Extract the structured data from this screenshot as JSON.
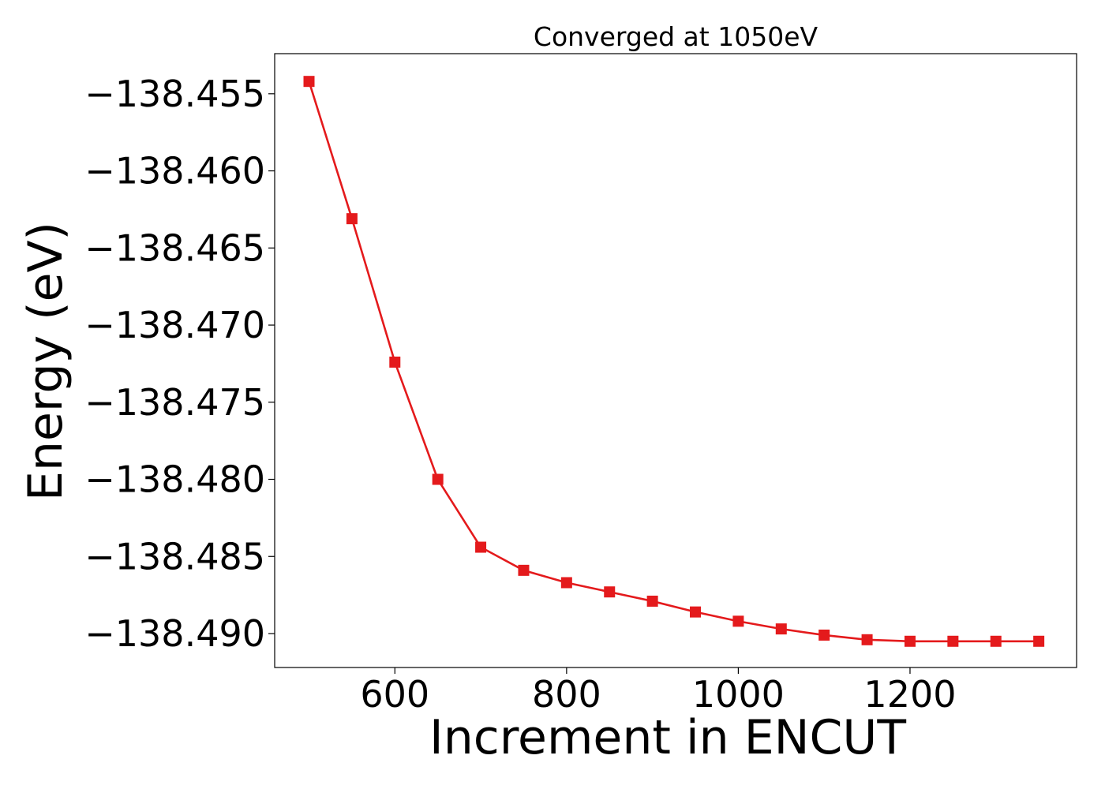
{
  "chart_data": {
    "type": "line",
    "title": "Converged at 1050eV",
    "xlabel": "Increment in ENCUT",
    "ylabel": "Energy (eV)",
    "x": [
      500,
      550,
      600,
      650,
      700,
      750,
      800,
      850,
      900,
      950,
      1000,
      1050,
      1100,
      1150,
      1200,
      1250,
      1300,
      1350
    ],
    "series": [
      {
        "values": [
          -138.4542,
          -138.4631,
          -138.4724,
          -138.48,
          -138.4844,
          -138.4859,
          -138.4867,
          -138.4873,
          -138.4879,
          -138.4886,
          -138.4892,
          -138.4897,
          -138.4901,
          -138.4904,
          -138.4905,
          -138.4905,
          -138.4905,
          -138.4905
        ]
      }
    ],
    "xlim": [
      460,
      1394
    ],
    "ylim": [
      -138.4922,
      -138.4524
    ],
    "xticks": [
      600,
      800,
      1000,
      1200
    ],
    "xtick_labels": [
      "600",
      "800",
      "1000",
      "1200"
    ],
    "yticks": [
      -138.455,
      -138.46,
      -138.465,
      -138.47,
      -138.475,
      -138.48,
      -138.485,
      -138.49
    ],
    "ytick_labels": [
      "−138.455",
      "−138.460",
      "−138.465",
      "−138.470",
      "−138.475",
      "−138.480",
      "−138.485",
      "−138.490"
    ],
    "marker": "square",
    "line_color": "#e41a1c",
    "grid": false,
    "legend": false
  }
}
